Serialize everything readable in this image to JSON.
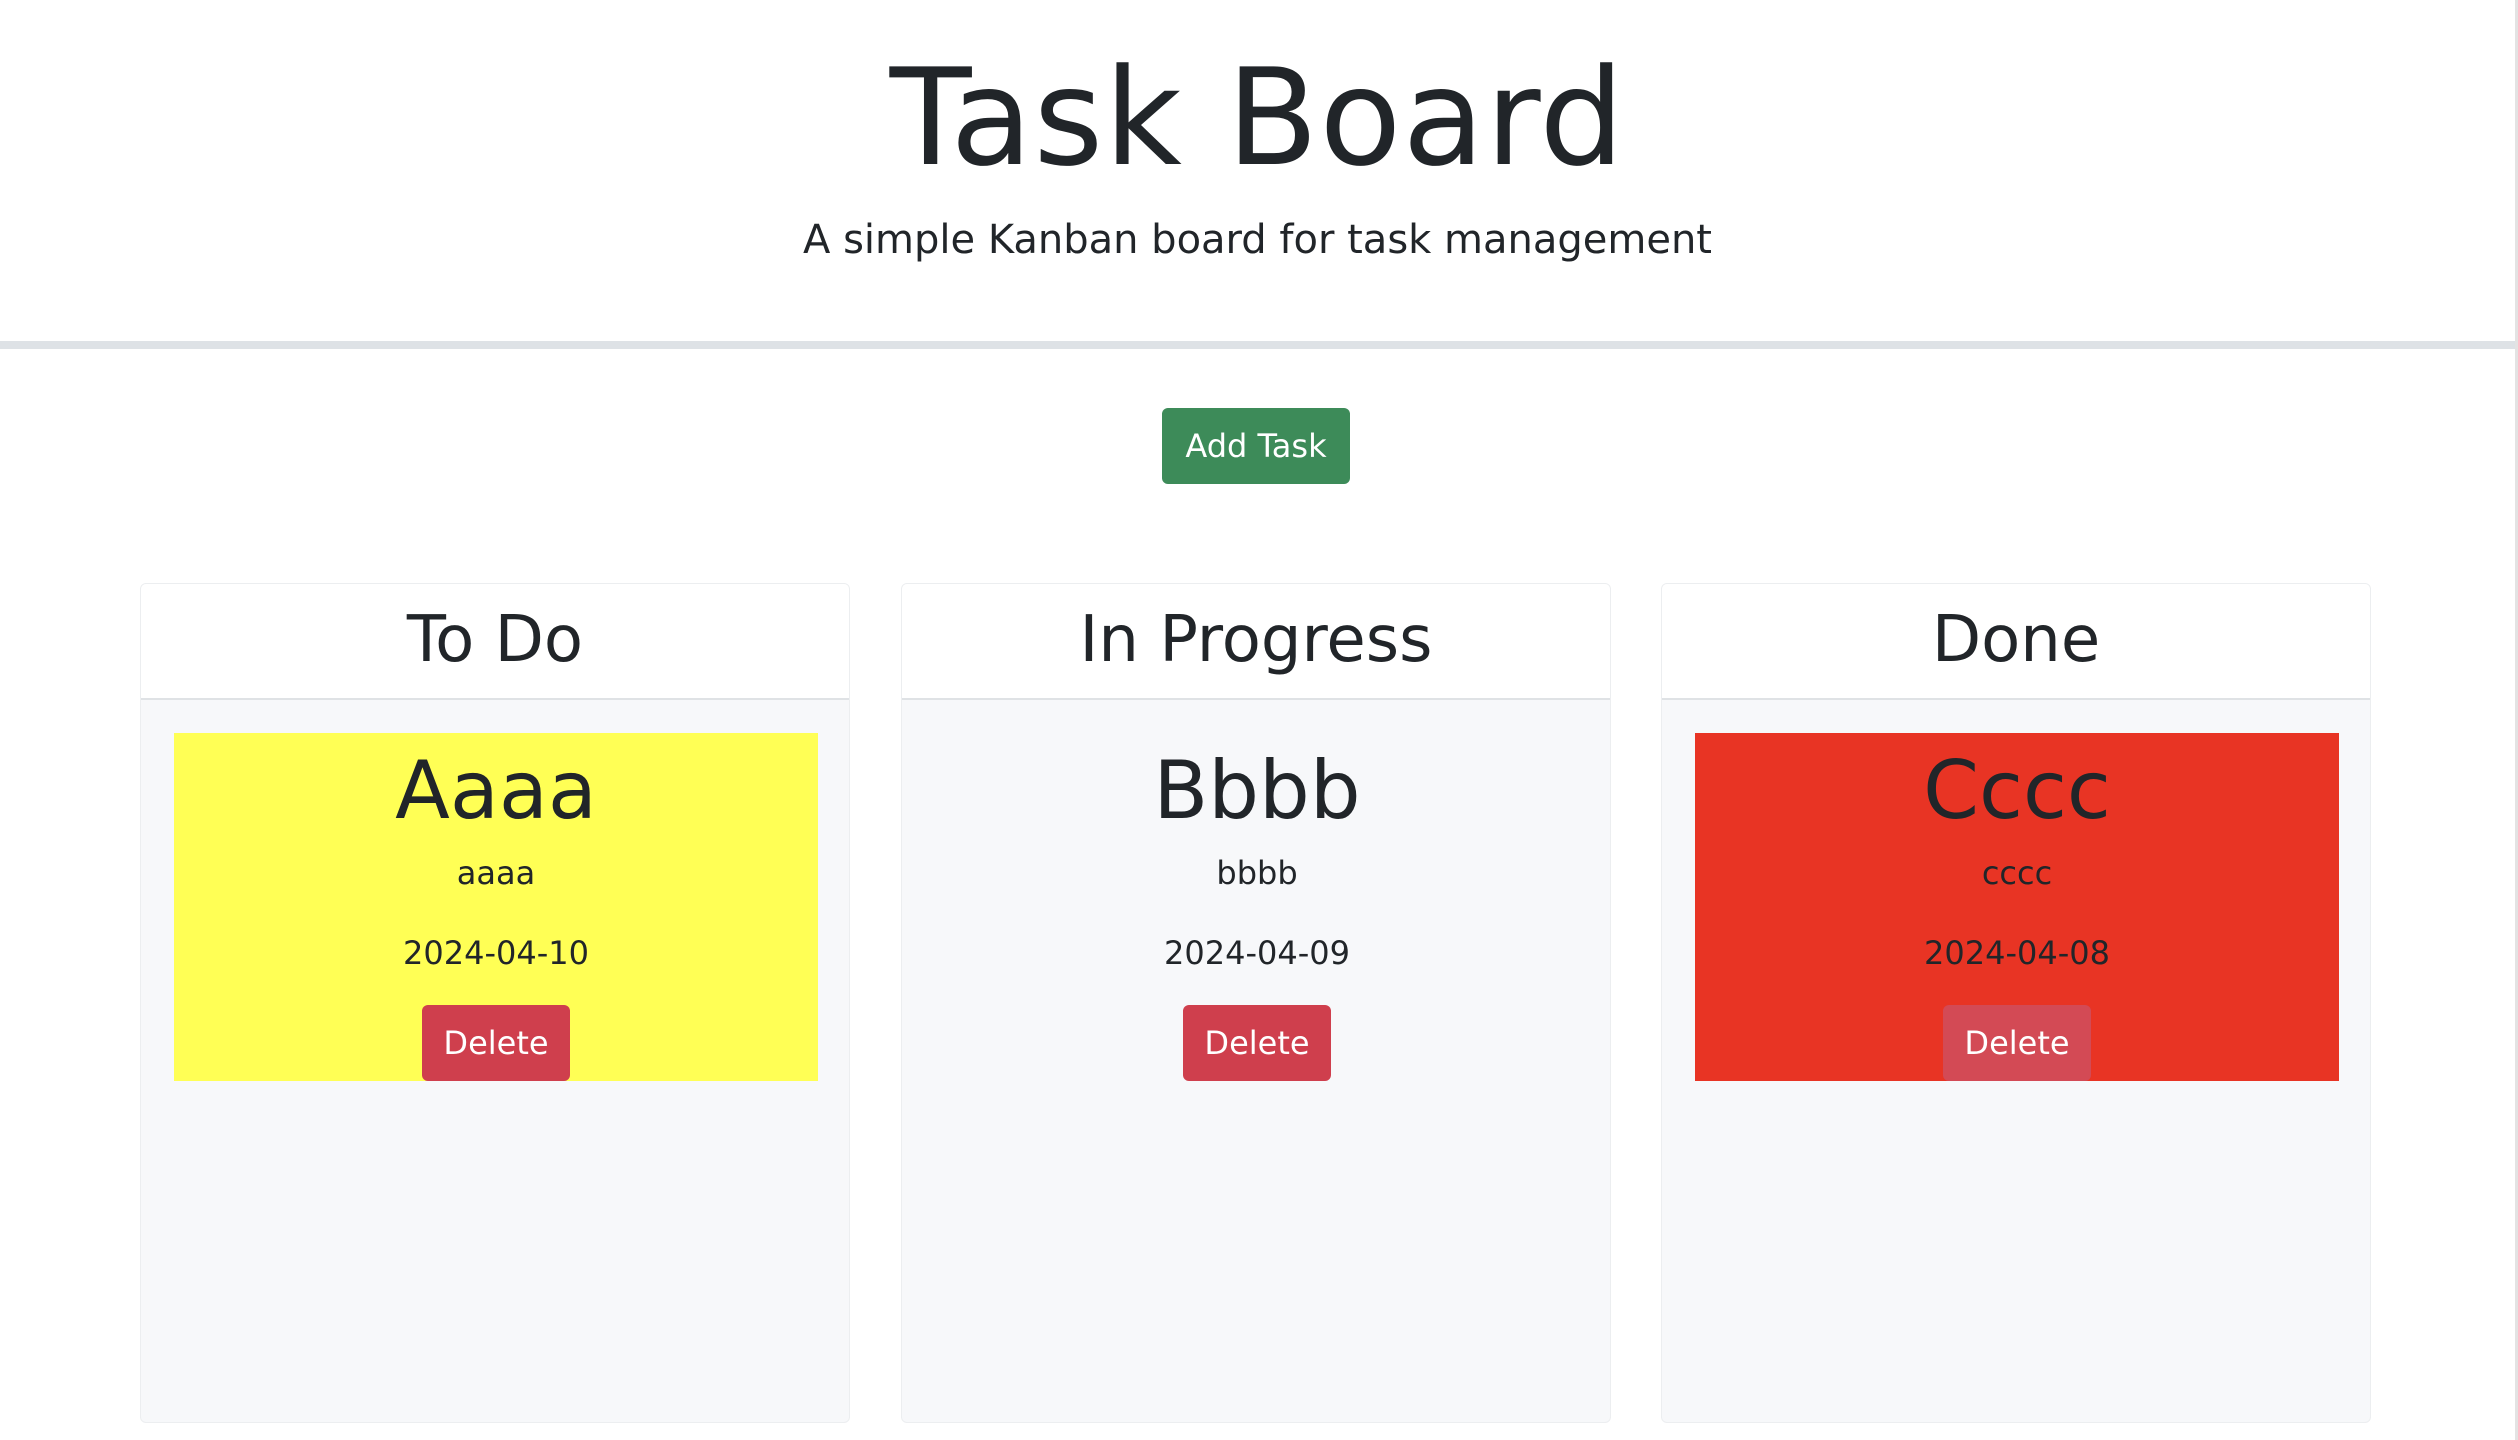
{
  "header": {
    "title": "Task Board",
    "subtitle": "A simple Kanban board for task management"
  },
  "toolbar": {
    "add_task_label": "Add Task",
    "add_task_color": "#3d8b59"
  },
  "columns": [
    {
      "title": "To Do",
      "tasks": [
        {
          "title": "Aaaa",
          "description": "aaaa",
          "date": "2024-04-10",
          "delete_label": "Delete",
          "color": "#ffff55"
        }
      ]
    },
    {
      "title": "In Progress",
      "tasks": [
        {
          "title": "Bbbb",
          "description": "bbbb",
          "date": "2024-04-09",
          "delete_label": "Delete",
          "color": "#f7f8fa"
        }
      ]
    },
    {
      "title": "Done",
      "tasks": [
        {
          "title": "Cccc",
          "description": "cccc",
          "date": "2024-04-08",
          "delete_label": "Delete",
          "color": "#e83424"
        }
      ]
    }
  ],
  "colors": {
    "delete_button": "#cf3f4d",
    "column_background": "#f7f8fa",
    "divider": "#dee2e6"
  }
}
